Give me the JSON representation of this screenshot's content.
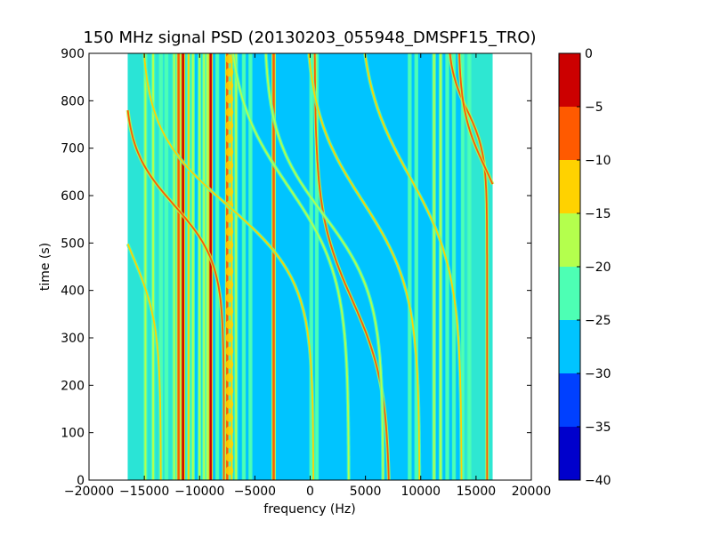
{
  "chart_data": {
    "type": "heatmap",
    "title": "150 MHz signal PSD (20130203_055948_DMSPF15_TRO)",
    "xlabel": "frequency (Hz)",
    "ylabel": "time (s)",
    "xlim": [
      -20000,
      20000
    ],
    "ylim": [
      0,
      900
    ],
    "xticks": [
      -20000,
      -15000,
      -10000,
      -5000,
      0,
      5000,
      10000,
      15000,
      20000
    ],
    "xtick_labels": [
      "−20000",
      "−15000",
      "−10000",
      "−5000",
      "0",
      "5000",
      "10000",
      "15000",
      "20000"
    ],
    "yticks": [
      0,
      100,
      200,
      300,
      400,
      500,
      600,
      700,
      800,
      900
    ],
    "ytick_labels": [
      "0",
      "100",
      "200",
      "300",
      "400",
      "500",
      "600",
      "700",
      "800",
      "900"
    ],
    "data_extent_hz": [
      -16500,
      16500
    ],
    "colorbar": {
      "levels": [
        -40,
        -35,
        -30,
        -25,
        -20,
        -15,
        -10,
        -5,
        0
      ],
      "tick_labels": [
        "−40",
        "−35",
        "−30",
        "−25",
        "−20",
        "−15",
        "−10",
        "−5",
        "0"
      ],
      "colors": [
        "#0000cc",
        "#0040ff",
        "#00c4ff",
        "#4dffb4",
        "#b4ff4d",
        "#ffd200",
        "#ff5a00",
        "#cc0000"
      ]
    },
    "background_level_band": [
      -30,
      -25
    ],
    "edge_level_band": [
      -25,
      -20
    ],
    "constant_lines": [
      {
        "f": -14900,
        "band": 4
      },
      {
        "f": -14200,
        "band": 4
      },
      {
        "f": -13500,
        "band": 3
      },
      {
        "f": -13000,
        "band": 3
      },
      {
        "f": -12300,
        "band": 4
      },
      {
        "f": -11900,
        "band": 6
      },
      {
        "f": -11500,
        "band": 7
      },
      {
        "f": -11000,
        "band": 5
      },
      {
        "f": -10600,
        "band": 4
      },
      {
        "f": -10000,
        "band": 4
      },
      {
        "f": -9600,
        "band": 4
      },
      {
        "f": -9300,
        "band": 4
      },
      {
        "f": -9000,
        "band": 7
      },
      {
        "f": -8400,
        "band": 3
      },
      {
        "f": -7500,
        "band": 6
      },
      {
        "f": -7100,
        "band": 5
      },
      {
        "f": -6700,
        "band": 4
      },
      {
        "f": -6000,
        "band": 3
      },
      {
        "f": -5400,
        "band": 3
      },
      {
        "f": -3300,
        "band": 6
      },
      {
        "f": 100,
        "band": 3
      },
      {
        "f": 600,
        "band": 3
      },
      {
        "f": 9000,
        "band": 3
      },
      {
        "f": 9600,
        "band": 3
      },
      {
        "f": 11200,
        "band": 4
      },
      {
        "f": 11800,
        "band": 4
      },
      {
        "f": 12400,
        "band": 3
      },
      {
        "f": 13000,
        "band": 3
      },
      {
        "f": 13800,
        "band": 3
      },
      {
        "f": 14400,
        "band": 3
      }
    ],
    "doppler_tracks": [
      {
        "f_center": 3800,
        "t_center": 380,
        "half_sweep": 3400,
        "t_scale": 180,
        "band": 6
      },
      {
        "f_center": -7500,
        "t_center": 580,
        "half_sweep": 7800,
        "t_scale": 160,
        "band": 5
      },
      {
        "f_center": -12300,
        "t_center": 580,
        "half_sweep": 4500,
        "t_scale": 120,
        "band": 6
      },
      {
        "f_center": -16000,
        "t_center": 470,
        "half_sweep": 2500,
        "t_scale": 140,
        "band": 5
      },
      {
        "f_center": 4700,
        "t_center": 590,
        "half_sweep": 5200,
        "t_scale": 190,
        "band": 5
      },
      {
        "f_center": 9000,
        "t_center": 640,
        "half_sweep": 4700,
        "t_scale": 200,
        "band": 5
      },
      {
        "f_center": 1200,
        "t_center": 560,
        "half_sweep": 5400,
        "t_scale": 170,
        "band": 4
      },
      {
        "f_center": 14200,
        "t_center": 780,
        "half_sweep": 1800,
        "t_scale": 90,
        "band": 6
      },
      {
        "f_center": 15800,
        "t_center": 660,
        "half_sweep": 2400,
        "t_scale": 120,
        "band": 6
      },
      {
        "f_center": -2000,
        "t_center": 620,
        "half_sweep": 5500,
        "t_scale": 190,
        "band": 4
      }
    ]
  }
}
